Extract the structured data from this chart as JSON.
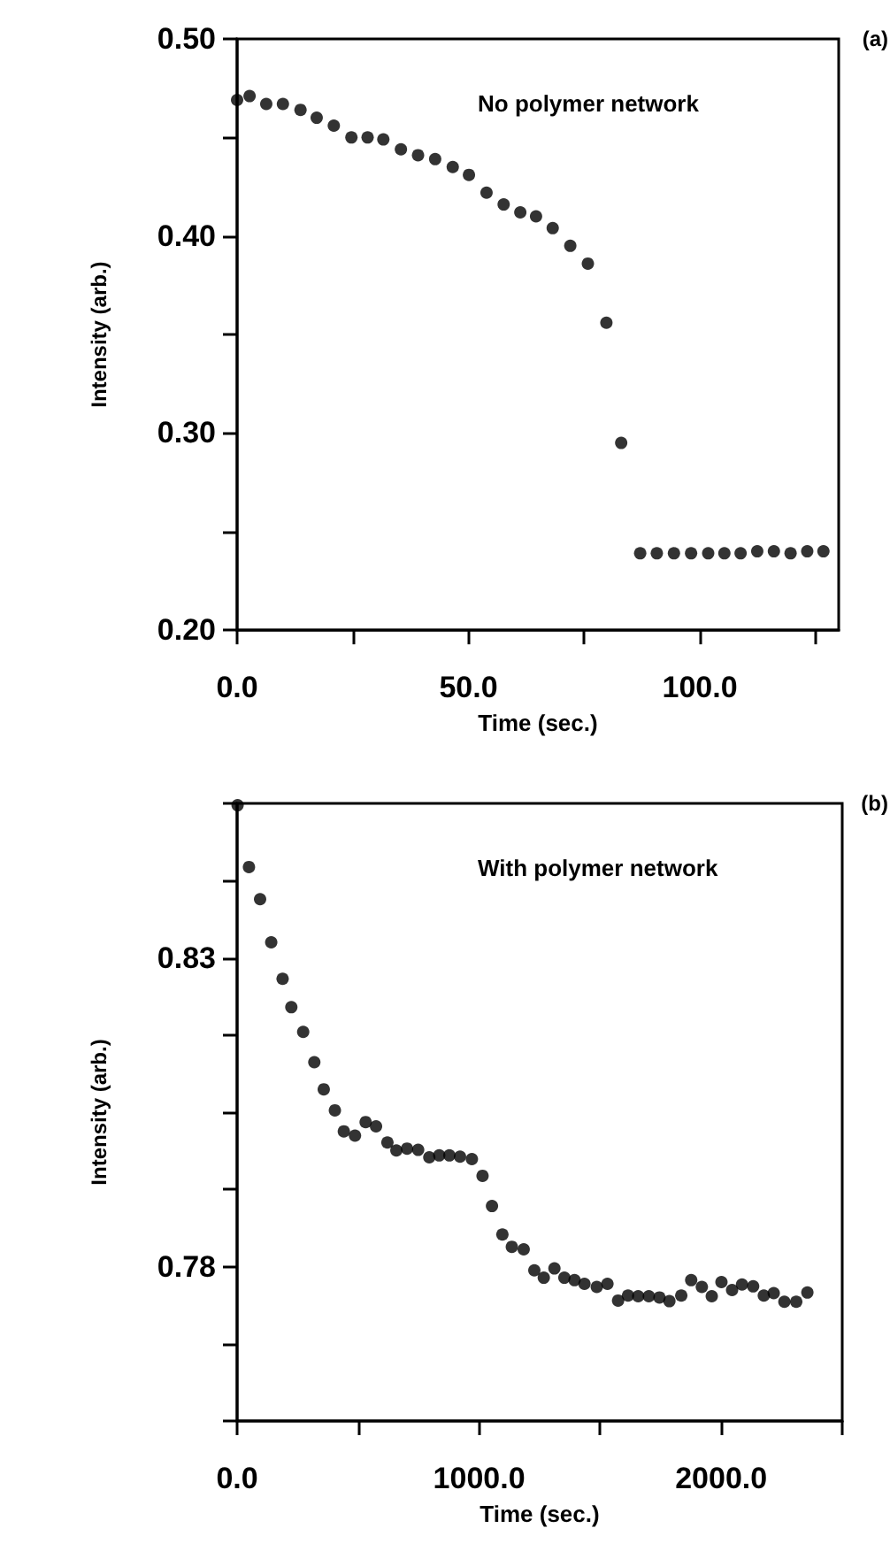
{
  "chart_data": [
    {
      "type": "scatter",
      "xlabel": "Time (sec.)",
      "ylabel": "Intensity (arb.)",
      "marker": "circle",
      "annotations": [
        "No polymer network",
        "(a)"
      ],
      "xlim": [
        0,
        130
      ],
      "ylim": [
        0.2,
        0.5
      ],
      "xticks": [
        {
          "value": 0,
          "label": "0.0"
        },
        {
          "value": 25,
          "label": null
        },
        {
          "value": 50,
          "label": "50.0"
        },
        {
          "value": 75,
          "label": null
        },
        {
          "value": 100,
          "label": "100.0"
        },
        {
          "value": 125,
          "label": null
        }
      ],
      "yticks": [
        {
          "value": 0.2,
          "label": "0.20"
        },
        {
          "value": 0.25,
          "label": null
        },
        {
          "value": 0.3,
          "label": "0.30"
        },
        {
          "value": 0.35,
          "label": null
        },
        {
          "value": 0.4,
          "label": "0.40"
        },
        {
          "value": 0.45,
          "label": null
        },
        {
          "value": 0.5,
          "label": "0.50"
        }
      ],
      "series": [
        {
          "color": "#000000",
          "x": [
            0,
            2.7,
            6.3,
            9.9,
            13.7,
            17.2,
            20.9,
            24.7,
            28.2,
            31.6,
            35.4,
            39.1,
            42.8,
            46.6,
            50.1,
            53.9,
            57.6,
            61.2,
            64.6,
            68.2,
            72,
            75.8,
            79.8,
            83,
            87.1,
            90.7,
            94.4,
            98.1,
            101.8,
            105.3,
            108.8,
            112.4,
            116,
            119.6,
            123.2,
            126.7
          ],
          "values": [
            0.469,
            0.471,
            0.467,
            0.467,
            0.464,
            0.46,
            0.456,
            0.45,
            0.45,
            0.449,
            0.444,
            0.441,
            0.439,
            0.435,
            0.431,
            0.422,
            0.416,
            0.412,
            0.41,
            0.404,
            0.395,
            0.386,
            0.356,
            0.295,
            0.239,
            0.239,
            0.239,
            0.239,
            0.239,
            0.239,
            0.239,
            0.24,
            0.24,
            0.239,
            0.24,
            0.24
          ]
        }
      ]
    },
    {
      "type": "scatter",
      "xlabel": "Time (sec.)",
      "ylabel": "Intensity (arb.)",
      "marker": "circle",
      "annotations": [
        "With polymer network",
        "(b)"
      ],
      "xlim": [
        0,
        2500
      ],
      "ylim": [
        0.755,
        0.855
      ],
      "xticks": [
        {
          "value": 0,
          "label": "0.0"
        },
        {
          "value": 500,
          "label": null
        },
        {
          "value": 1000,
          "label": "1000.0"
        },
        {
          "value": 1500,
          "label": null
        },
        {
          "value": 2000,
          "label": "2000.0"
        },
        {
          "value": 2500,
          "label": null
        }
      ],
      "yticks": [
        {
          "value": 0.755,
          "label": null
        },
        {
          "value": 0.7675,
          "label": null
        },
        0.78,
        {
          "value": 0.7925,
          "label": null
        },
        {
          "value": 0.805,
          "label": null
        },
        {
          "value": 0.8175,
          "label": null
        },
        0.83,
        {
          "value": 0.8425,
          "label": null
        },
        {
          "value": 0.855,
          "label": null
        }
      ],
      "series": [
        {
          "color": "#000000",
          "x": [
            2,
            49,
            95,
            141,
            188,
            224,
            273,
            319,
            358,
            404,
            441,
            487,
            531,
            574,
            621,
            658,
            702,
            748,
            794,
            835,
            877,
            921,
            970,
            1014,
            1053,
            1096,
            1135,
            1184,
            1228,
            1267,
            1311,
            1352,
            1394,
            1435,
            1486,
            1530,
            1574,
            1615,
            1657,
            1701,
            1745,
            1786,
            1835,
            1876,
            1920,
            1961,
            2001,
            2045,
            2086,
            2132,
            2176,
            2217,
            2261,
            2310,
            2356
          ],
          "values": [
            0.8547,
            0.8447,
            0.8395,
            0.8325,
            0.8266,
            0.822,
            0.818,
            0.8131,
            0.8087,
            0.8053,
            0.8019,
            0.8012,
            0.8034,
            0.8027,
            0.8001,
            0.7988,
            0.7991,
            0.7989,
            0.7977,
            0.798,
            0.798,
            0.7978,
            0.7974,
            0.7947,
            0.7898,
            0.7852,
            0.7832,
            0.7828,
            0.7794,
            0.7782,
            0.7797,
            0.7782,
            0.7778,
            0.7772,
            0.7767,
            0.7772,
            0.7745,
            0.7753,
            0.7752,
            0.7752,
            0.775,
            0.7744,
            0.7753,
            0.7778,
            0.7767,
            0.7752,
            0.7775,
            0.7762,
            0.7771,
            0.7768,
            0.7753,
            0.7757,
            0.7743,
            0.7743,
            0.7758
          ]
        }
      ]
    }
  ]
}
